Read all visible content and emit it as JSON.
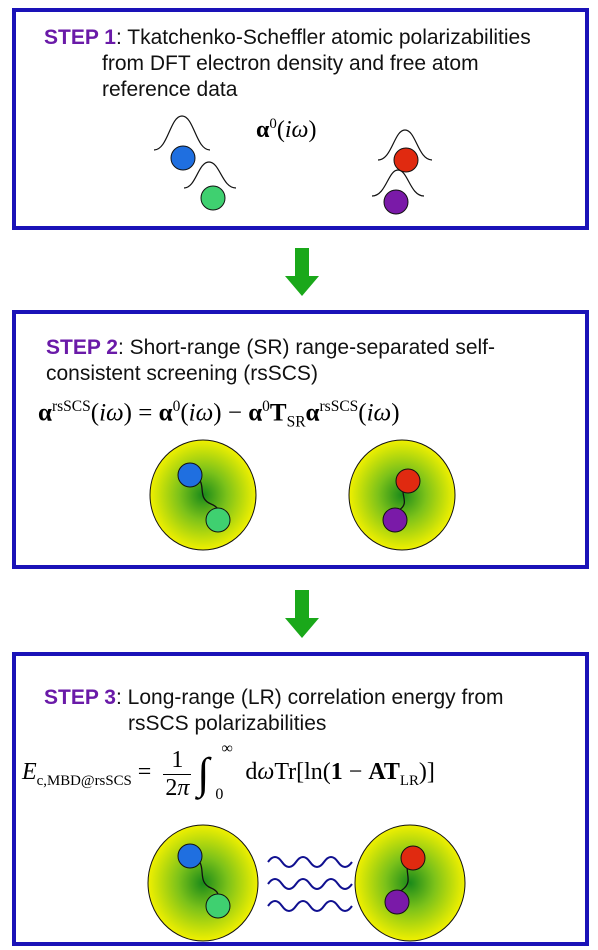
{
  "step1": {
    "label": "STEP 1",
    "line1": ": Tkatchenko-Scheffler atomic polarizabilities",
    "line2": "from DFT electron density and free atom",
    "line3": "reference data",
    "formula": "α⁰(iω)"
  },
  "step2": {
    "label": "STEP 2",
    "line1": ": Short-range (SR) range-separated self-",
    "line2": "consistent screening (rsSCS)",
    "formula": "αʳˢˢᶜˢ(iω) = α⁰(iω) − α⁰T_SR αʳˢˢᶜˢ(iω)"
  },
  "step3": {
    "label": "STEP 3",
    "line1": ": Long-range (LR) correlation energy from",
    "line2": "rsSCS polarizabilities",
    "formula": "E_c,MBD@rsSCS = 1/(2π) ∫₀^∞ dω Tr[ln(1 − AT_LR)]"
  },
  "colors": {
    "border": "#1a12b8",
    "step_label": "#6a1aa8",
    "arrow": "#1aa81a",
    "atom_blue": "#1f6fe0",
    "atom_green": "#3fd070",
    "atom_red": "#e02a10",
    "atom_purple": "#7a1aa8",
    "cloud_outer": "#f0f000",
    "cloud_inner": "#1a8a1a",
    "wave": "#101090"
  }
}
